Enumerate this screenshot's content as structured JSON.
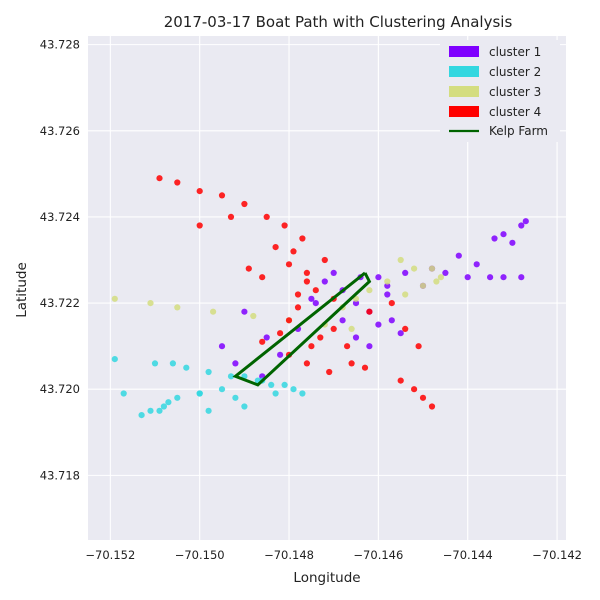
{
  "chart_data": {
    "type": "scatter",
    "title": "2017-03-17 Boat Path with Clustering Analysis",
    "xlabel": "Longitude",
    "ylabel": "Latitude",
    "xlim": [
      -70.1525,
      -70.1418
    ],
    "ylim": [
      43.7165,
      43.7282
    ],
    "xticks": [
      -70.152,
      -70.15,
      -70.148,
      -70.146,
      -70.144,
      -70.142
    ],
    "xtick_labels": [
      "−70.152",
      "−70.150",
      "−70.148",
      "−70.146",
      "−70.144",
      "−70.142"
    ],
    "yticks": [
      43.718,
      43.72,
      43.722,
      43.724,
      43.726,
      43.728
    ],
    "ytick_labels": [
      "43.718",
      "43.720",
      "43.722",
      "43.724",
      "43.726",
      "43.728"
    ],
    "grid": true,
    "legend_position": "top-right",
    "series": [
      {
        "name": "cluster 1",
        "color": "#7f00ff",
        "points": [
          [
            -70.149,
            43.7218
          ],
          [
            -70.1475,
            43.7221
          ],
          [
            -70.1465,
            43.722
          ],
          [
            -70.146,
            43.7215
          ],
          [
            -70.1455,
            43.7213
          ],
          [
            -70.1462,
            43.7218
          ],
          [
            -70.1457,
            43.7216
          ],
          [
            -70.1468,
            43.7223
          ],
          [
            -70.1464,
            43.7226
          ],
          [
            -70.146,
            43.7226
          ],
          [
            -70.1458,
            43.7224
          ],
          [
            -70.147,
            43.7227
          ],
          [
            -70.1472,
            43.7225
          ],
          [
            -70.1474,
            43.722
          ],
          [
            -70.1478,
            43.7214
          ],
          [
            -70.1482,
            43.7208
          ],
          [
            -70.1486,
            43.7203
          ],
          [
            -70.1492,
            43.7206
          ],
          [
            -70.1495,
            43.721
          ],
          [
            -70.1485,
            43.7212
          ],
          [
            -70.1468,
            43.7216
          ],
          [
            -70.1465,
            43.7212
          ],
          [
            -70.1462,
            43.721
          ],
          [
            -70.1445,
            43.7227
          ],
          [
            -70.1448,
            43.7228
          ],
          [
            -70.144,
            43.7226
          ],
          [
            -70.1435,
            43.7226
          ],
          [
            -70.1432,
            43.7226
          ],
          [
            -70.1428,
            43.7226
          ],
          [
            -70.1438,
            43.7229
          ],
          [
            -70.1442,
            43.7231
          ],
          [
            -70.143,
            43.7234
          ],
          [
            -70.1432,
            43.7236
          ],
          [
            -70.1434,
            43.7235
          ],
          [
            -70.1428,
            43.7238
          ],
          [
            -70.1427,
            43.7239
          ],
          [
            -70.145,
            43.7224
          ],
          [
            -70.1454,
            43.7227
          ],
          [
            -70.1458,
            43.7222
          ]
        ]
      },
      {
        "name": "cluster 2",
        "color": "#33d7e0",
        "points": [
          [
            -70.1519,
            43.7207
          ],
          [
            -70.151,
            43.7206
          ],
          [
            -70.1503,
            43.7205
          ],
          [
            -70.1498,
            43.7204
          ],
          [
            -70.1493,
            43.7203
          ],
          [
            -70.149,
            43.7203
          ],
          [
            -70.1487,
            43.7202
          ],
          [
            -70.1484,
            43.7201
          ],
          [
            -70.1481,
            43.7201
          ],
          [
            -70.1479,
            43.72
          ],
          [
            -70.1477,
            43.7199
          ],
          [
            -70.1495,
            43.72
          ],
          [
            -70.15,
            43.7199
          ],
          [
            -70.1505,
            43.7198
          ],
          [
            -70.1508,
            43.7196
          ],
          [
            -70.1511,
            43.7195
          ],
          [
            -70.1513,
            43.7194
          ],
          [
            -70.1509,
            43.7195
          ],
          [
            -70.1507,
            43.7197
          ],
          [
            -70.1517,
            43.7199
          ],
          [
            -70.1506,
            43.7206
          ],
          [
            -70.15,
            43.7199
          ],
          [
            -70.1492,
            43.7198
          ],
          [
            -70.149,
            43.7196
          ],
          [
            -70.1498,
            43.7195
          ],
          [
            -70.1486,
            43.7202
          ],
          [
            -70.1483,
            43.7199
          ]
        ]
      },
      {
        "name": "cluster 3",
        "color": "#d4dd80",
        "points": [
          [
            -70.1519,
            43.7221
          ],
          [
            -70.1511,
            43.722
          ],
          [
            -70.1505,
            43.7219
          ],
          [
            -70.1497,
            43.7218
          ],
          [
            -70.1488,
            43.7217
          ],
          [
            -70.148,
            43.7216
          ],
          [
            -70.1472,
            43.7215
          ],
          [
            -70.1466,
            43.7214
          ],
          [
            -70.1468,
            43.7219
          ],
          [
            -70.1465,
            43.7221
          ],
          [
            -70.1462,
            43.7223
          ],
          [
            -70.1458,
            43.7225
          ],
          [
            -70.1454,
            43.7222
          ],
          [
            -70.145,
            43.7224
          ],
          [
            -70.1447,
            43.7225
          ],
          [
            -70.1448,
            43.7228
          ],
          [
            -70.1446,
            43.7226
          ],
          [
            -70.1452,
            43.7228
          ],
          [
            -70.1455,
            43.723
          ]
        ]
      },
      {
        "name": "cluster 4",
        "color": "#ff0000",
        "points": [
          [
            -70.1509,
            43.7249
          ],
          [
            -70.1505,
            43.7248
          ],
          [
            -70.15,
            43.7246
          ],
          [
            -70.1495,
            43.7245
          ],
          [
            -70.149,
            43.7243
          ],
          [
            -70.1485,
            43.724
          ],
          [
            -70.1481,
            43.7238
          ],
          [
            -70.1477,
            43.7235
          ],
          [
            -70.1479,
            43.7232
          ],
          [
            -70.1483,
            43.7233
          ],
          [
            -70.148,
            43.7229
          ],
          [
            -70.1476,
            43.7225
          ],
          [
            -70.1474,
            43.7223
          ],
          [
            -70.1478,
            43.7219
          ],
          [
            -70.148,
            43.7216
          ],
          [
            -70.1482,
            43.7213
          ],
          [
            -70.1486,
            43.7211
          ],
          [
            -70.148,
            43.7208
          ],
          [
            -70.1476,
            43.7206
          ],
          [
            -70.1471,
            43.7204
          ],
          [
            -70.1466,
            43.7206
          ],
          [
            -70.1463,
            43.7205
          ],
          [
            -70.1455,
            43.7202
          ],
          [
            -70.1452,
            43.72
          ],
          [
            -70.145,
            43.7198
          ],
          [
            -70.1448,
            43.7196
          ],
          [
            -70.1457,
            43.722
          ],
          [
            -70.1454,
            43.7214
          ],
          [
            -70.1451,
            43.721
          ],
          [
            -70.147,
            43.7214
          ],
          [
            -70.1467,
            43.721
          ],
          [
            -70.1473,
            43.7212
          ],
          [
            -70.1489,
            43.7228
          ],
          [
            -70.1486,
            43.7226
          ],
          [
            -70.1476,
            43.7227
          ],
          [
            -70.1472,
            43.723
          ],
          [
            -70.147,
            43.7221
          ],
          [
            -70.1478,
            43.7222
          ],
          [
            -70.1475,
            43.721
          ],
          [
            -70.1462,
            43.7218
          ],
          [
            -70.15,
            43.7238
          ],
          [
            -70.1493,
            43.724
          ]
        ]
      }
    ],
    "kelp_farm": {
      "name": "Kelp Farm",
      "color": "#006400",
      "polygon": [
        [
          -70.1463,
          43.7227
        ],
        [
          -70.1462,
          43.7225
        ],
        [
          -70.1487,
          43.7201
        ],
        [
          -70.1492,
          43.7203
        ],
        [
          -70.1463,
          43.7227
        ]
      ]
    }
  }
}
